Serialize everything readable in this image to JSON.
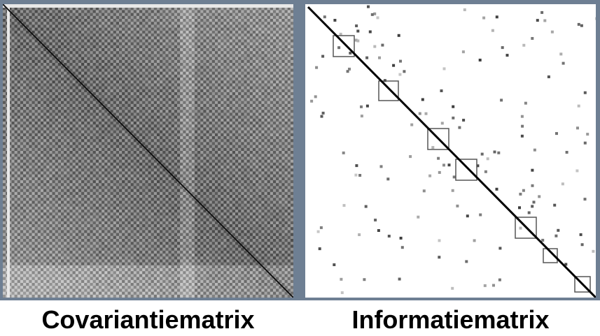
{
  "panels": [
    {
      "id": "covariance",
      "caption": "Covariantiematrix"
    },
    {
      "id": "information",
      "caption": "Informatiematrix"
    }
  ],
  "colors": {
    "frame": "#6e7f93",
    "dense_dark": "#2e2e2e",
    "dense_light": "#9a9a9a",
    "sparse_background": "#ffffff",
    "diagonal": "#000000"
  }
}
